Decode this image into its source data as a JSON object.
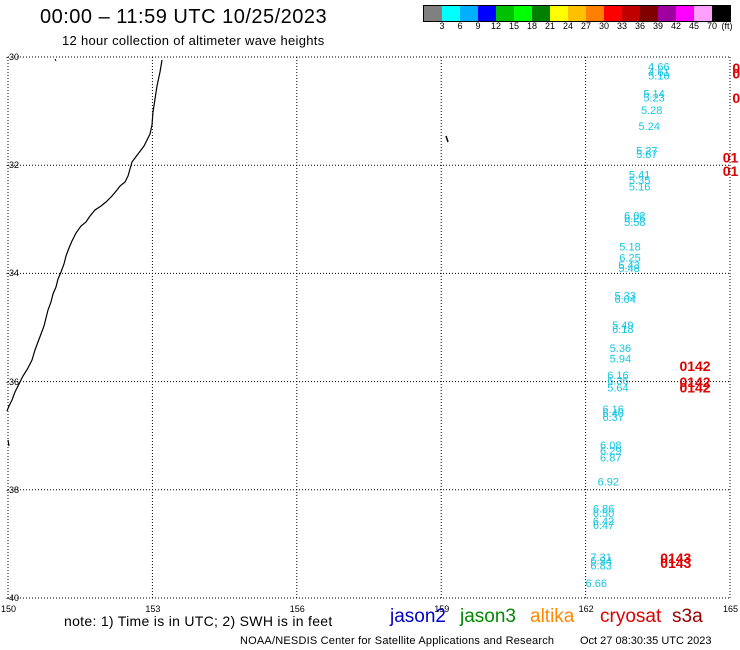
{
  "header": {
    "title": "00:00 – 11:59 UTC 10/25/2023",
    "subtitle": "12 hour collection of altimeter wave heights"
  },
  "legend": {
    "unit": "(ft)",
    "swatches": [
      "#808080",
      "#00ffff",
      "#00b0ff",
      "#0000ff",
      "#00c000",
      "#00ff00",
      "#008000",
      "#ffff00",
      "#ffc000",
      "#ff8000",
      "#ff0000",
      "#c00000",
      "#800000",
      "#a000a0",
      "#ff00ff",
      "#ffa0ff",
      "#000000"
    ],
    "labels": [
      "3",
      "6",
      "9",
      "12",
      "15",
      "18",
      "21",
      "24",
      "27",
      "30",
      "33",
      "36",
      "39",
      "42",
      "45",
      "70"
    ]
  },
  "map": {
    "lat_labels": [
      "-30",
      "-32",
      "-34",
      "-36",
      "-38",
      "-40"
    ],
    "lon_labels": [
      "150",
      "153",
      "156",
      "159",
      "162",
      "165"
    ],
    "lon_range": [
      150,
      165
    ],
    "lat_range": [
      -40,
      -30
    ],
    "grid": "dotted",
    "coast_color": "#000000"
  },
  "observations": {
    "color_swh": "#17c6e0",
    "color_pass": "#e00000",
    "swh_values": [
      {
        "lon": 163.3,
        "lat": -30.25,
        "text": "4.66"
      },
      {
        "lon": 163.3,
        "lat": -30.35,
        "text": "4.61"
      },
      {
        "lon": 163.3,
        "lat": -30.42,
        "text": "5.10"
      },
      {
        "lon": 163.2,
        "lat": -30.75,
        "text": "5.14"
      },
      {
        "lon": 163.2,
        "lat": -30.82,
        "text": "5.23"
      },
      {
        "lon": 163.15,
        "lat": -31.05,
        "text": "5.28"
      },
      {
        "lon": 163.1,
        "lat": -31.35,
        "text": "5.24"
      },
      {
        "lon": 163.05,
        "lat": -31.8,
        "text": "5.27"
      },
      {
        "lon": 163.05,
        "lat": -31.87,
        "text": "5.87"
      },
      {
        "lon": 162.9,
        "lat": -32.25,
        "text": "5.41"
      },
      {
        "lon": 162.9,
        "lat": -32.35,
        "text": "5.35"
      },
      {
        "lon": 162.9,
        "lat": -32.47,
        "text": "5.16"
      },
      {
        "lon": 162.8,
        "lat": -33.0,
        "text": "6.02"
      },
      {
        "lon": 162.8,
        "lat": -33.05,
        "text": "6.25"
      },
      {
        "lon": 162.8,
        "lat": -33.12,
        "text": "5.58"
      },
      {
        "lon": 162.7,
        "lat": -33.58,
        "text": "5.18"
      },
      {
        "lon": 162.7,
        "lat": -33.78,
        "text": "6.25"
      },
      {
        "lon": 162.68,
        "lat": -33.92,
        "text": "5.43"
      },
      {
        "lon": 162.68,
        "lat": -33.97,
        "text": "5.48"
      },
      {
        "lon": 162.6,
        "lat": -34.48,
        "text": "5.33"
      },
      {
        "lon": 162.6,
        "lat": -34.55,
        "text": "6.04"
      },
      {
        "lon": 162.55,
        "lat": -35.03,
        "text": "5.49"
      },
      {
        "lon": 162.55,
        "lat": -35.1,
        "text": "6.18"
      },
      {
        "lon": 162.5,
        "lat": -35.45,
        "text": "5.36"
      },
      {
        "lon": 162.5,
        "lat": -35.65,
        "text": "5.94"
      },
      {
        "lon": 162.45,
        "lat": -35.95,
        "text": "6.16"
      },
      {
        "lon": 162.45,
        "lat": -36.05,
        "text": "6.36"
      },
      {
        "lon": 162.45,
        "lat": -36.18,
        "text": "5.64"
      },
      {
        "lon": 162.35,
        "lat": -36.58,
        "text": "6.16"
      },
      {
        "lon": 162.35,
        "lat": -36.65,
        "text": "6.40"
      },
      {
        "lon": 162.35,
        "lat": -36.73,
        "text": "6.37"
      },
      {
        "lon": 162.3,
        "lat": -37.25,
        "text": "6.08"
      },
      {
        "lon": 162.3,
        "lat": -37.35,
        "text": "6.29"
      },
      {
        "lon": 162.3,
        "lat": -37.48,
        "text": "6.87"
      },
      {
        "lon": 162.25,
        "lat": -37.92,
        "text": "6.92"
      },
      {
        "lon": 162.15,
        "lat": -38.42,
        "text": "6.86"
      },
      {
        "lon": 162.15,
        "lat": -38.5,
        "text": "6.50"
      },
      {
        "lon": 162.15,
        "lat": -38.65,
        "text": "6.42"
      },
      {
        "lon": 162.15,
        "lat": -38.72,
        "text": "6.47"
      },
      {
        "lon": 162.1,
        "lat": -39.32,
        "text": "7.31"
      },
      {
        "lon": 162.1,
        "lat": -39.38,
        "text": "6.94"
      },
      {
        "lon": 162.1,
        "lat": -39.47,
        "text": "6.83"
      },
      {
        "lon": 162.0,
        "lat": -39.8,
        "text": "6.66"
      }
    ],
    "pass_labels": [
      {
        "lon": 165.05,
        "lat": -30.3,
        "text": "0"
      },
      {
        "lon": 165.05,
        "lat": -30.4,
        "text": "0"
      },
      {
        "lon": 165.05,
        "lat": -30.85,
        "text": "0"
      },
      {
        "lon": 164.85,
        "lat": -31.95,
        "text": "01"
      },
      {
        "lon": 164.85,
        "lat": -32.2,
        "text": "01"
      },
      {
        "lon": 163.95,
        "lat": -35.8,
        "text": "0142"
      },
      {
        "lon": 163.95,
        "lat": -36.1,
        "text": "0142"
      },
      {
        "lon": 163.95,
        "lat": -36.2,
        "text": "0142"
      },
      {
        "lon": 163.55,
        "lat": -39.35,
        "text": "0143"
      },
      {
        "lon": 163.55,
        "lat": -39.45,
        "text": "0143"
      }
    ]
  },
  "footer": {
    "note": "note:  1) Time is in UTC;  2) SWH is in feet",
    "satellites": [
      {
        "name": "jason2",
        "color": "#0000cc"
      },
      {
        "name": "jason3",
        "color": "#008800"
      },
      {
        "name": "altika",
        "color": "#ff8800"
      },
      {
        "name": "cryosat",
        "color": "#dd0000"
      },
      {
        "name": "s3a",
        "color": "#990000"
      }
    ],
    "credit": "NOAA/NESDIS Center for Satellite Applications and Research",
    "timestamp": "Oct 27 08:30:35 UTC 2023"
  }
}
